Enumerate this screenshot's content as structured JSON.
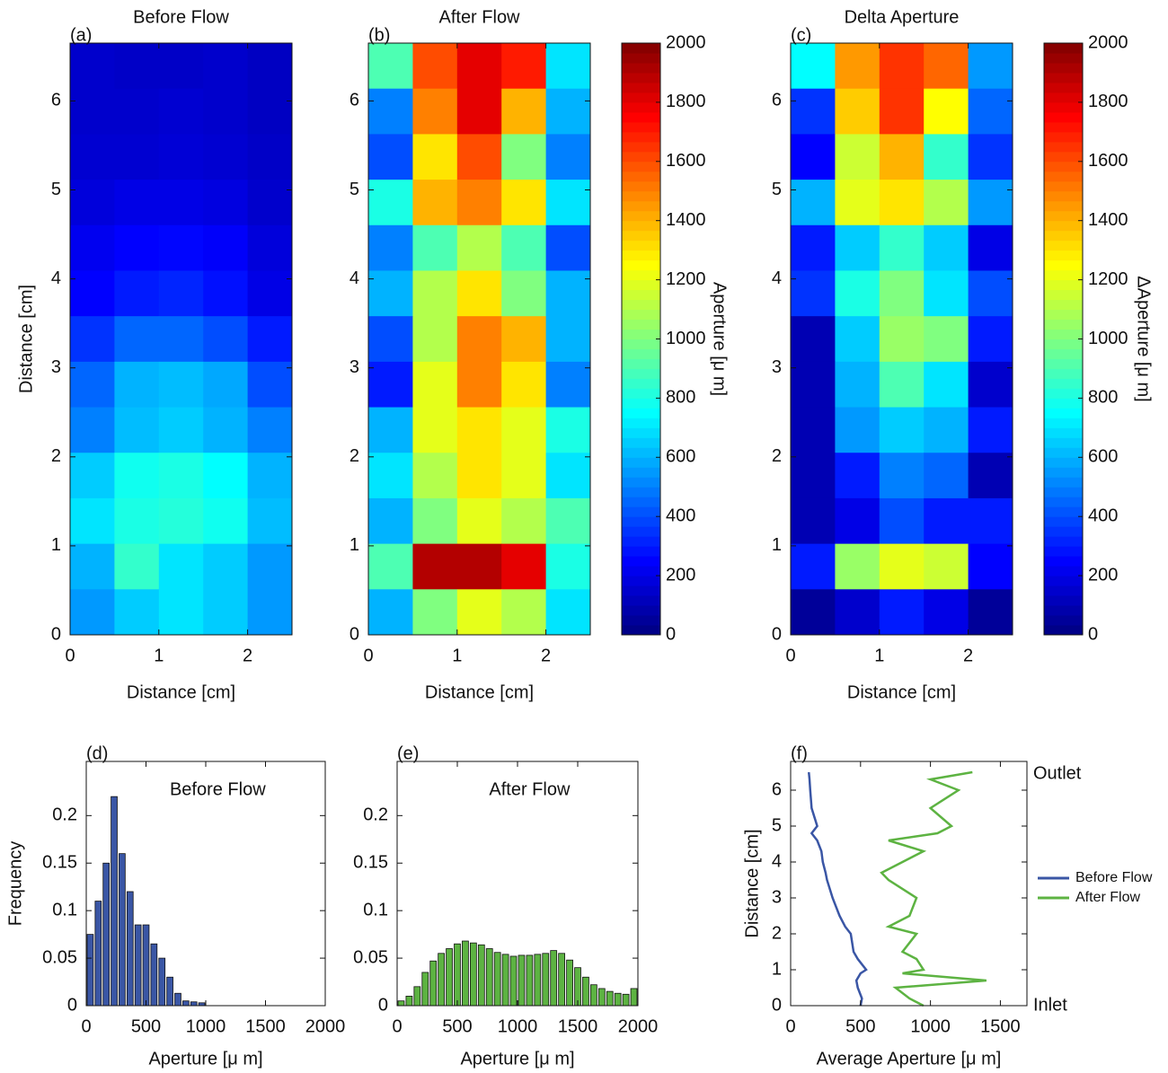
{
  "chart_data": [
    {
      "type": "heatmap",
      "label": "(a)",
      "title": "Before Flow",
      "xlabel": "Distance [cm]",
      "ylabel": "Distance [cm]",
      "xlim": [
        0,
        2.5
      ],
      "ylim": [
        0,
        6.65
      ],
      "xticks": [
        0,
        1,
        2
      ],
      "yticks": [
        0,
        1,
        2,
        3,
        4,
        5,
        6
      ],
      "zlim": [
        0,
        2000
      ],
      "grid": [
        [
          150,
          140,
          140,
          150,
          130
        ],
        [
          150,
          150,
          160,
          150,
          130
        ],
        [
          160,
          160,
          170,
          160,
          140
        ],
        [
          180,
          200,
          200,
          190,
          150
        ],
        [
          220,
          250,
          260,
          240,
          180
        ],
        [
          250,
          300,
          320,
          280,
          200
        ],
        [
          350,
          450,
          450,
          400,
          300
        ],
        [
          450,
          600,
          620,
          580,
          400
        ],
        [
          500,
          620,
          650,
          600,
          500
        ],
        [
          650,
          780,
          800,
          750,
          600
        ],
        [
          700,
          800,
          820,
          780,
          620
        ],
        [
          600,
          850,
          700,
          650,
          550
        ],
        [
          550,
          650,
          700,
          650,
          550
        ]
      ]
    },
    {
      "type": "heatmap",
      "label": "(b)",
      "title": "After Flow",
      "xlabel": "Distance [cm]",
      "xlim": [
        0,
        2.5
      ],
      "ylim": [
        0,
        6.65
      ],
      "xticks": [
        0,
        1,
        2
      ],
      "yticks": [
        0,
        1,
        2,
        3,
        4,
        5,
        6
      ],
      "zlim": [
        0,
        2000
      ],
      "grid": [
        [
          900,
          1600,
          1800,
          1700,
          700
        ],
        [
          500,
          1500,
          1800,
          1400,
          600
        ],
        [
          400,
          1300,
          1600,
          1000,
          500
        ],
        [
          800,
          1400,
          1500,
          1300,
          700
        ],
        [
          500,
          900,
          1100,
          900,
          400
        ],
        [
          600,
          1100,
          1300,
          1000,
          600
        ],
        [
          400,
          1100,
          1500,
          1400,
          600
        ],
        [
          300,
          1200,
          1500,
          1300,
          500
        ],
        [
          600,
          1200,
          1300,
          1200,
          800
        ],
        [
          700,
          1100,
          1300,
          1200,
          700
        ],
        [
          600,
          1000,
          1200,
          1100,
          900
        ],
        [
          900,
          1900,
          1900,
          1800,
          800
        ],
        [
          600,
          1000,
          1200,
          1100,
          700
        ]
      ],
      "colorbar": {
        "label": "Aperture [μ m]",
        "lim": [
          0,
          2000
        ],
        "ticks": [
          0,
          200,
          400,
          600,
          800,
          1000,
          1200,
          1400,
          1600,
          1800,
          2000
        ]
      }
    },
    {
      "type": "heatmap",
      "label": "(c)",
      "title": "Delta Aperture",
      "xlabel": "Distance [cm]",
      "xlim": [
        0,
        2.5
      ],
      "ylim": [
        0,
        6.65
      ],
      "xticks": [
        0,
        1,
        2
      ],
      "yticks": [
        0,
        1,
        2,
        3,
        4,
        5,
        6
      ],
      "zlim": [
        0,
        2000
      ],
      "grid": [
        [
          750,
          1450,
          1650,
          1550,
          550
        ],
        [
          350,
          1350,
          1650,
          1250,
          450
        ],
        [
          250,
          1150,
          1400,
          850,
          350
        ],
        [
          600,
          1200,
          1300,
          1100,
          550
        ],
        [
          300,
          650,
          850,
          650,
          200
        ],
        [
          350,
          800,
          1000,
          700,
          400
        ],
        [
          100,
          650,
          1050,
          1000,
          300
        ],
        [
          100,
          600,
          900,
          700,
          150
        ],
        [
          100,
          550,
          650,
          600,
          300
        ],
        [
          100,
          300,
          500,
          450,
          100
        ],
        [
          100,
          200,
          400,
          300,
          300
        ],
        [
          300,
          1050,
          1200,
          1150,
          250
        ],
        [
          50,
          150,
          300,
          200,
          50
        ]
      ],
      "colorbar": {
        "label": "ΔAperture [μ m]",
        "lim": [
          0,
          2000
        ],
        "ticks": [
          0,
          200,
          400,
          600,
          800,
          1000,
          1200,
          1400,
          1600,
          1800,
          2000
        ]
      }
    },
    {
      "type": "histogram",
      "label": "(d)",
      "title": "Before Flow",
      "xlabel": "Aperture [μ m]",
      "ylabel": "Frequency",
      "color": "#3a56a5",
      "xlim": [
        0,
        2000
      ],
      "ylim": [
        0,
        0.257
      ],
      "xticks": [
        0,
        500,
        1000,
        1500,
        2000
      ],
      "yticks": [
        0,
        0.05,
        0.1,
        0.15,
        0.2
      ],
      "bins": [
        0,
        66.7,
        133.3,
        200,
        266.7,
        333.3,
        400,
        466.7,
        533.3,
        600,
        666.7,
        733.3,
        800,
        866.7,
        933.3,
        1000,
        1066.7,
        1133.3,
        1200,
        1266.7,
        1333.3,
        1400,
        1466.7,
        1533.3,
        1600,
        1666.7,
        1733.3,
        1800,
        1866.7,
        1933.3,
        2000
      ],
      "counts": [
        0.075,
        0.11,
        0.15,
        0.22,
        0.16,
        0.12,
        0.085,
        0.085,
        0.065,
        0.05,
        0.03,
        0.013,
        0.005,
        0.004,
        0.003,
        0,
        0,
        0,
        0,
        0,
        0,
        0,
        0,
        0,
        0,
        0,
        0,
        0,
        0,
        0
      ]
    },
    {
      "type": "histogram",
      "label": "(e)",
      "title": "After Flow",
      "xlabel": "Aperture [μ m]",
      "color": "#5db342",
      "xlim": [
        0,
        2000
      ],
      "ylim": [
        0,
        0.257
      ],
      "xticks": [
        0,
        500,
        1000,
        1500,
        2000
      ],
      "yticks": [
        0,
        0.05,
        0.1,
        0.15,
        0.2
      ],
      "bins": [
        0,
        66.7,
        133.3,
        200,
        266.7,
        333.3,
        400,
        466.7,
        533.3,
        600,
        666.7,
        733.3,
        800,
        866.7,
        933.3,
        1000,
        1066.7,
        1133.3,
        1200,
        1266.7,
        1333.3,
        1400,
        1466.7,
        1533.3,
        1600,
        1666.7,
        1733.3,
        1800,
        1866.7,
        1933.3,
        2000
      ],
      "counts": [
        0.005,
        0.01,
        0.02,
        0.035,
        0.047,
        0.055,
        0.06,
        0.065,
        0.068,
        0.066,
        0.064,
        0.06,
        0.056,
        0.054,
        0.052,
        0.053,
        0.053,
        0.054,
        0.055,
        0.058,
        0.055,
        0.048,
        0.04,
        0.03,
        0.022,
        0.018,
        0.015,
        0.013,
        0.012,
        0.018
      ]
    },
    {
      "type": "line",
      "label": "(f)",
      "xlabel": "Average Aperture [μ m]",
      "ylabel": "Distance [cm]",
      "xlim": [
        0,
        1690
      ],
      "ylim": [
        0,
        6.8
      ],
      "xticks": [
        0,
        500,
        1000,
        1500
      ],
      "yticks": [
        0,
        1,
        2,
        3,
        4,
        5,
        6
      ],
      "annotations": [
        "Outlet",
        "Inlet"
      ],
      "y": [
        0,
        0.2,
        0.5,
        0.7,
        0.9,
        1.0,
        1.3,
        1.5,
        2.0,
        2.2,
        2.5,
        3.0,
        3.5,
        3.7,
        4.0,
        4.3,
        4.6,
        4.8,
        5.0,
        5.5,
        6.0,
        6.3,
        6.5
      ],
      "series": [
        {
          "name": "Before Flow",
          "color": "#3a56a5",
          "values": [
            500,
            510,
            480,
            470,
            500,
            540,
            480,
            450,
            430,
            390,
            350,
            300,
            260,
            250,
            230,
            220,
            190,
            150,
            190,
            150,
            140,
            135,
            130
          ]
        },
        {
          "name": "After Flow",
          "color": "#5db342",
          "values": [
            950,
            850,
            750,
            1400,
            800,
            950,
            900,
            800,
            900,
            700,
            850,
            900,
            700,
            650,
            800,
            950,
            700,
            1050,
            1150,
            1000,
            1200,
            1000,
            1300
          ]
        }
      ]
    }
  ]
}
